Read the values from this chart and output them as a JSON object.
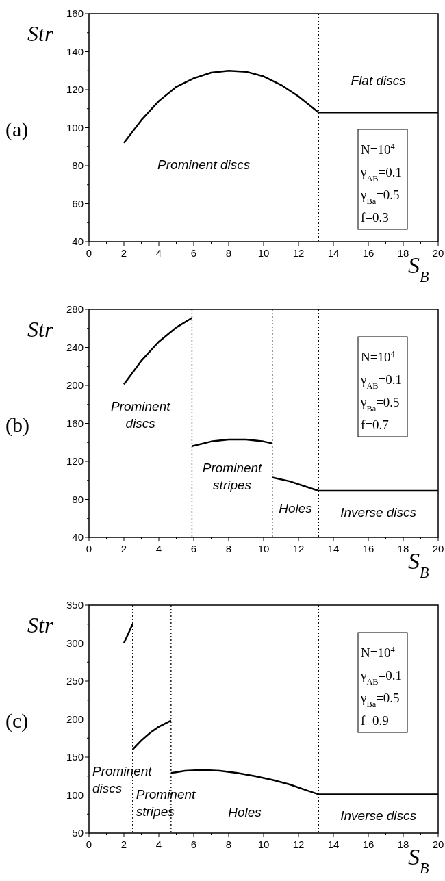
{
  "chart_data": [
    {
      "type": "line",
      "title": "(a)",
      "xlabel": "S$_{B}$",
      "ylabel": "Str",
      "xlim": [
        0,
        20
      ],
      "ylim": [
        40,
        160
      ],
      "xticks": [
        0,
        {
          "value": 1,
          "label": null
        },
        2,
        {
          "value": 3,
          "label": null
        },
        4,
        {
          "value": 5,
          "label": null
        },
        6,
        {
          "value": 7,
          "label": null
        },
        8,
        {
          "value": 9,
          "label": null
        },
        10,
        {
          "value": 11,
          "label": null
        },
        12,
        {
          "value": 13,
          "label": null
        },
        14,
        {
          "value": 15,
          "label": null
        },
        16,
        {
          "value": 17,
          "label": null
        },
        18,
        {
          "value": 19,
          "label": null
        },
        20
      ],
      "yticks": [
        40,
        {
          "value": 50,
          "label": null
        },
        60,
        {
          "value": 70,
          "label": null
        },
        80,
        {
          "value": 90,
          "label": null
        },
        100,
        {
          "value": 110,
          "label": null
        },
        120,
        {
          "value": 130,
          "label": null
        },
        140,
        {
          "value": 150,
          "label": null
        },
        160
      ],
      "series": [
        {
          "color": "#000000",
          "x": [
            2,
            3,
            4,
            5,
            6,
            7,
            8,
            9,
            10,
            11,
            12,
            13.15,
            20
          ],
          "values": [
            92,
            104,
            114,
            121.5,
            126,
            129,
            130,
            129.5,
            127,
            122.5,
            116.5,
            108,
            108
          ]
        }
      ],
      "line_style": "solid",
      "grid": false,
      "ref_lines": [
        {
          "axis": "x",
          "value": 13.15,
          "color": "#000000",
          "line_style": "dotted"
        }
      ],
      "annotations": [
        "Prominent discs",
        "Flat discs",
        "N=10$^{4}$",
        "γ$_{AB}$=0.1",
        "γ$_{Ba}$=0.5",
        "f=0.3"
      ]
    },
    {
      "type": "line",
      "title": "(b)",
      "xlabel": "S$_{B}$",
      "ylabel": "Str",
      "xlim": [
        0,
        20
      ],
      "ylim": [
        40,
        280
      ],
      "xticks": [
        0,
        {
          "value": 1,
          "label": null
        },
        2,
        {
          "value": 3,
          "label": null
        },
        4,
        {
          "value": 5,
          "label": null
        },
        6,
        {
          "value": 7,
          "label": null
        },
        8,
        {
          "value": 9,
          "label": null
        },
        10,
        {
          "value": 11,
          "label": null
        },
        12,
        {
          "value": 13,
          "label": null
        },
        14,
        {
          "value": 15,
          "label": null
        },
        16,
        {
          "value": 17,
          "label": null
        },
        18,
        {
          "value": 19,
          "label": null
        },
        20
      ],
      "yticks": [
        40,
        {
          "value": 60,
          "label": null
        },
        80,
        {
          "value": 100,
          "label": null
        },
        120,
        {
          "value": 140,
          "label": null
        },
        160,
        {
          "value": 180,
          "label": null
        },
        200,
        {
          "value": 220,
          "label": null
        },
        240,
        {
          "value": 260,
          "label": null
        },
        280
      ],
      "series": [
        {
          "color": "#000000",
          "x": [
            2,
            3,
            4,
            5,
            5.9
          ],
          "values": [
            201,
            226,
            246,
            261,
            271
          ]
        },
        {
          "color": "#000000",
          "x": [
            5.9,
            7,
            8,
            9,
            10,
            10.5
          ],
          "values": [
            136,
            141,
            143,
            143,
            141,
            139
          ]
        },
        {
          "color": "#000000",
          "x": [
            10.5,
            11.5,
            12.5,
            13.15,
            20
          ],
          "values": [
            103,
            99,
            93,
            89,
            89
          ]
        }
      ],
      "line_style": "solid",
      "grid": false,
      "ref_lines": [
        {
          "axis": "x",
          "value": 5.9,
          "color": "#000000",
          "line_style": "dotted"
        },
        {
          "axis": "x",
          "value": 10.5,
          "color": "#000000",
          "line_style": "dotted"
        },
        {
          "axis": "x",
          "value": 13.15,
          "color": "#000000",
          "line_style": "dotted"
        }
      ],
      "annotations": [
        "Prominent\ndiscs",
        "Prominent\nstripes",
        "Holes",
        "Inverse discs",
        "N=10$^{4}$",
        "γ$_{AB}$=0.1",
        "γ$_{Ba}$=0.5",
        "f=0.7"
      ]
    },
    {
      "type": "line",
      "title": "(c)",
      "xlabel": "S$_{B}$",
      "ylabel": "Str",
      "xlim": [
        0,
        20
      ],
      "ylim": [
        50,
        350
      ],
      "xticks": [
        0,
        {
          "value": 1,
          "label": null
        },
        2,
        {
          "value": 3,
          "label": null
        },
        4,
        {
          "value": 5,
          "label": null
        },
        6,
        {
          "value": 7,
          "label": null
        },
        8,
        {
          "value": 9,
          "label": null
        },
        10,
        {
          "value": 11,
          "label": null
        },
        12,
        {
          "value": 13,
          "label": null
        },
        14,
        {
          "value": 15,
          "label": null
        },
        16,
        {
          "value": 17,
          "label": null
        },
        18,
        {
          "value": 19,
          "label": null
        },
        20
      ],
      "yticks": [
        50,
        {
          "value": 75,
          "label": null
        },
        100,
        {
          "value": 125,
          "label": null
        },
        150,
        {
          "value": 175,
          "label": null
        },
        200,
        {
          "value": 225,
          "label": null
        },
        250,
        {
          "value": 275,
          "label": null
        },
        300,
        {
          "value": 325,
          "label": null
        },
        350
      ],
      "series": [
        {
          "color": "#000000",
          "x": [
            2,
            2.5
          ],
          "values": [
            300,
            325
          ]
        },
        {
          "color": "#000000",
          "x": [
            2.5,
            3,
            3.5,
            4,
            4.7
          ],
          "values": [
            160,
            172,
            182,
            190,
            198
          ]
        },
        {
          "color": "#000000",
          "x": [
            4.7,
            5.5,
            6.5,
            7.5,
            8.5,
            9.5,
            10.5,
            11.5,
            12.5,
            13.15,
            20
          ],
          "values": [
            129,
            132,
            133,
            132,
            129,
            125,
            120,
            114,
            106,
            101,
            101
          ]
        }
      ],
      "line_style": "solid",
      "grid": false,
      "ref_lines": [
        {
          "axis": "x",
          "value": 2.5,
          "color": "#000000",
          "line_style": "dotted"
        },
        {
          "axis": "x",
          "value": 4.7,
          "color": "#000000",
          "line_style": "dotted"
        },
        {
          "axis": "x",
          "value": 13.15,
          "color": "#000000",
          "line_style": "dotted"
        }
      ],
      "annotations": [
        "Prominent\ndiscs",
        "Prominent\nstripes",
        "Holes",
        "Inverse discs",
        "N=10$^{4}$",
        "γ$_{AB}$=0.1",
        "γ$_{Ba}$=0.5",
        "f=0.9"
      ]
    }
  ]
}
